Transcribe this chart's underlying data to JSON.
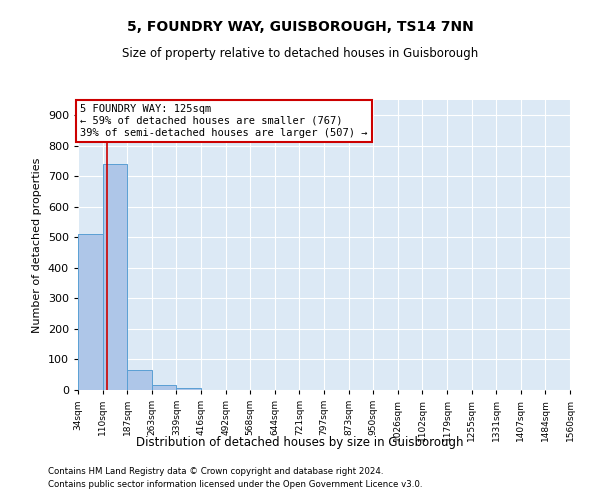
{
  "title": "5, FOUNDRY WAY, GUISBOROUGH, TS14 7NN",
  "subtitle": "Size of property relative to detached houses in Guisborough",
  "xlabel": "Distribution of detached houses by size in Guisborough",
  "ylabel": "Number of detached properties",
  "footnote1": "Contains HM Land Registry data © Crown copyright and database right 2024.",
  "footnote2": "Contains public sector information licensed under the Open Government Licence v3.0.",
  "annotation_title": "5 FOUNDRY WAY: 125sqm",
  "annotation_line1": "← 59% of detached houses are smaller (767)",
  "annotation_line2": "39% of semi-detached houses are larger (507) →",
  "property_size": 125,
  "bar_edges": [
    34,
    110,
    187,
    263,
    339,
    416,
    492,
    568,
    644,
    721,
    797,
    873,
    950,
    1026,
    1102,
    1179,
    1255,
    1331,
    1407,
    1484,
    1560
  ],
  "bar_heights": [
    510,
    740,
    65,
    18,
    5,
    0,
    0,
    0,
    0,
    0,
    0,
    0,
    0,
    0,
    0,
    0,
    0,
    0,
    0,
    0
  ],
  "bar_color": "#aec6e8",
  "bar_edge_color": "#5a9fd4",
  "vline_color": "#cc0000",
  "annotation_box_color": "#cc0000",
  "background_color": "#dce9f5",
  "ylim": [
    0,
    950
  ],
  "yticks": [
    0,
    100,
    200,
    300,
    400,
    500,
    600,
    700,
    800,
    900
  ],
  "grid_color": "#ffffff",
  "tick_labels": [
    "34sqm",
    "110sqm",
    "187sqm",
    "263sqm",
    "339sqm",
    "416sqm",
    "492sqm",
    "568sqm",
    "644sqm",
    "721sqm",
    "797sqm",
    "873sqm",
    "950sqm",
    "1026sqm",
    "1102sqm",
    "1179sqm",
    "1255sqm",
    "1331sqm",
    "1407sqm",
    "1484sqm",
    "1560sqm"
  ]
}
